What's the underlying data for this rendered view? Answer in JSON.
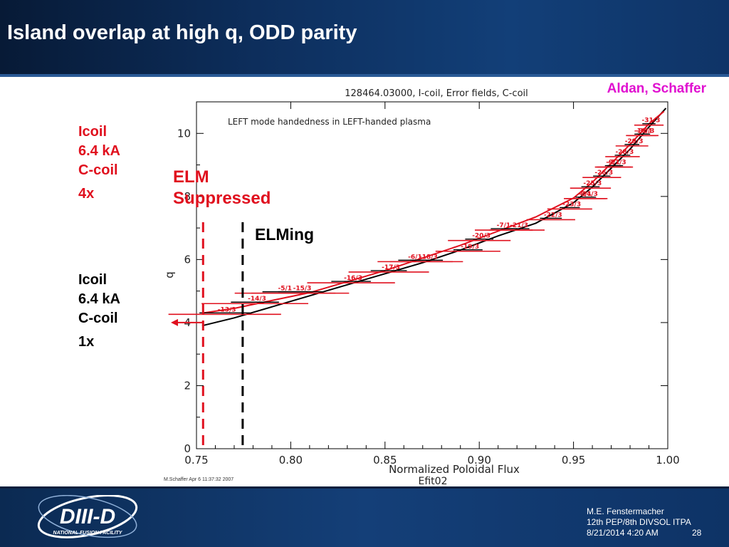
{
  "slide": {
    "title": "Island overlap at high q, ODD parity",
    "credit": "Aldan, Schaffer",
    "left_top": {
      "l1": "Icoil",
      "l2": "6.4 kA",
      "l3": "C-coil",
      "l4": "4x"
    },
    "left_bottom": {
      "l1": "Icoil",
      "l2": "6.4 kA",
      "l3": "C-coil",
      "l4": "1x"
    },
    "elm_suppressed": {
      "l1": "ELM",
      "l2": "Suppressed"
    },
    "elming": "ELMing",
    "stamp": "M.Schaffer Apr  6 11:37:32 2007"
  },
  "footer": {
    "logo_main": "DIII-D",
    "logo_sub": "NATIONAL FUSION FACILITY",
    "author": "M.E. Fenstermacher",
    "meeting": "12th PEP/8th DIVSOL ITPA",
    "date": "8/21/2014 4:20 AM",
    "page": "28"
  },
  "colors": {
    "red": "#e0101e",
    "magenta": "#e010d0",
    "navy": "#0d2e5c",
    "black": "#000000"
  },
  "chart_data": {
    "type": "line",
    "title": "128464.03000, I-coil, Error fields, C-coil",
    "subtitle": "LEFT mode handedness in LEFT-handed plasma",
    "xlabel": "Normalized Poloidal Flux",
    "xlabel2": "Efit02",
    "ylabel": "q",
    "xlim": [
      0.75,
      1.0
    ],
    "ylim": [
      0,
      11
    ],
    "xticks": [
      "0.75",
      "0.80",
      "0.85",
      "0.90",
      "0.95",
      "1.00"
    ],
    "yticks": [
      "0",
      "2",
      "4",
      "6",
      "8",
      "10"
    ],
    "series": [
      {
        "color": "#000000",
        "x": [
          0.753,
          0.77,
          0.79,
          0.81,
          0.83,
          0.85,
          0.87,
          0.89,
          0.91,
          0.93,
          0.95,
          0.96,
          0.97,
          0.98,
          0.99,
          0.999
        ],
        "y": [
          3.9,
          4.15,
          4.5,
          4.85,
          5.2,
          5.55,
          5.9,
          6.3,
          6.75,
          7.15,
          7.8,
          8.3,
          8.9,
          9.5,
          10.2,
          10.8
        ]
      },
      {
        "color": "#e0101e",
        "x": [
          0.753,
          0.77,
          0.79,
          0.81,
          0.83,
          0.85,
          0.87,
          0.89,
          0.91,
          0.93,
          0.95,
          0.96,
          0.97,
          0.98,
          0.99,
          0.998
        ],
        "y": [
          4.3,
          4.45,
          4.7,
          4.95,
          5.3,
          5.65,
          6.05,
          6.45,
          6.9,
          7.35,
          7.95,
          8.45,
          9.05,
          9.65,
          10.3,
          10.7
        ]
      }
    ],
    "islands": [
      {
        "label": "-13/3",
        "x": 0.765,
        "q": 4.33
      },
      {
        "label": "-14/3",
        "x": 0.781,
        "q": 4.67
      },
      {
        "label": "-5/1",
        "x": 0.797,
        "q": 5.0
      },
      {
        "label": "-15/3",
        "x": 0.805,
        "q": 5.0
      },
      {
        "label": "-16/3",
        "x": 0.832,
        "q": 5.33
      },
      {
        "label": "-17/3",
        "x": 0.852,
        "q": 5.67
      },
      {
        "label": "-6/1",
        "x": 0.866,
        "q": 6.0
      },
      {
        "label": "-18/3",
        "x": 0.872,
        "q": 6.0
      },
      {
        "label": "-19/3",
        "x": 0.894,
        "q": 6.33
      },
      {
        "label": "-20/3",
        "x": 0.9,
        "q": 6.67
      },
      {
        "label": "-7/1",
        "x": 0.913,
        "q": 7.0
      },
      {
        "label": "-21/3",
        "x": 0.92,
        "q": 7.0
      },
      {
        "label": "-22/3",
        "x": 0.938,
        "q": 7.33
      },
      {
        "label": "-23/3",
        "x": 0.948,
        "q": 7.67
      },
      {
        "label": "-8/1",
        "x": 0.956,
        "q": 8.0
      },
      {
        "label": "-24/3",
        "x": 0.957,
        "q": 8.0
      },
      {
        "label": "-25/3",
        "x": 0.959,
        "q": 8.33
      },
      {
        "label": "-26/3",
        "x": 0.965,
        "q": 8.67
      },
      {
        "label": "-9/1",
        "x": 0.971,
        "q": 9.0
      },
      {
        "label": "-27/3",
        "x": 0.972,
        "q": 9.0
      },
      {
        "label": "-28/3",
        "x": 0.976,
        "q": 9.33
      },
      {
        "label": "-29/3",
        "x": 0.981,
        "q": 9.67
      },
      {
        "label": "-10/1",
        "x": 0.986,
        "q": 10.0
      },
      {
        "label": "-30/3",
        "x": 0.987,
        "q": 10.0
      },
      {
        "label": "-31/3",
        "x": 0.99,
        "q": 10.33
      }
    ],
    "markers": [
      {
        "name": "elm-suppressed-line",
        "x": 0.7535,
        "color": "#e0101e"
      },
      {
        "name": "elming-line",
        "x": 0.7745,
        "color": "#000000"
      }
    ],
    "arrow_q": 4.0
  }
}
